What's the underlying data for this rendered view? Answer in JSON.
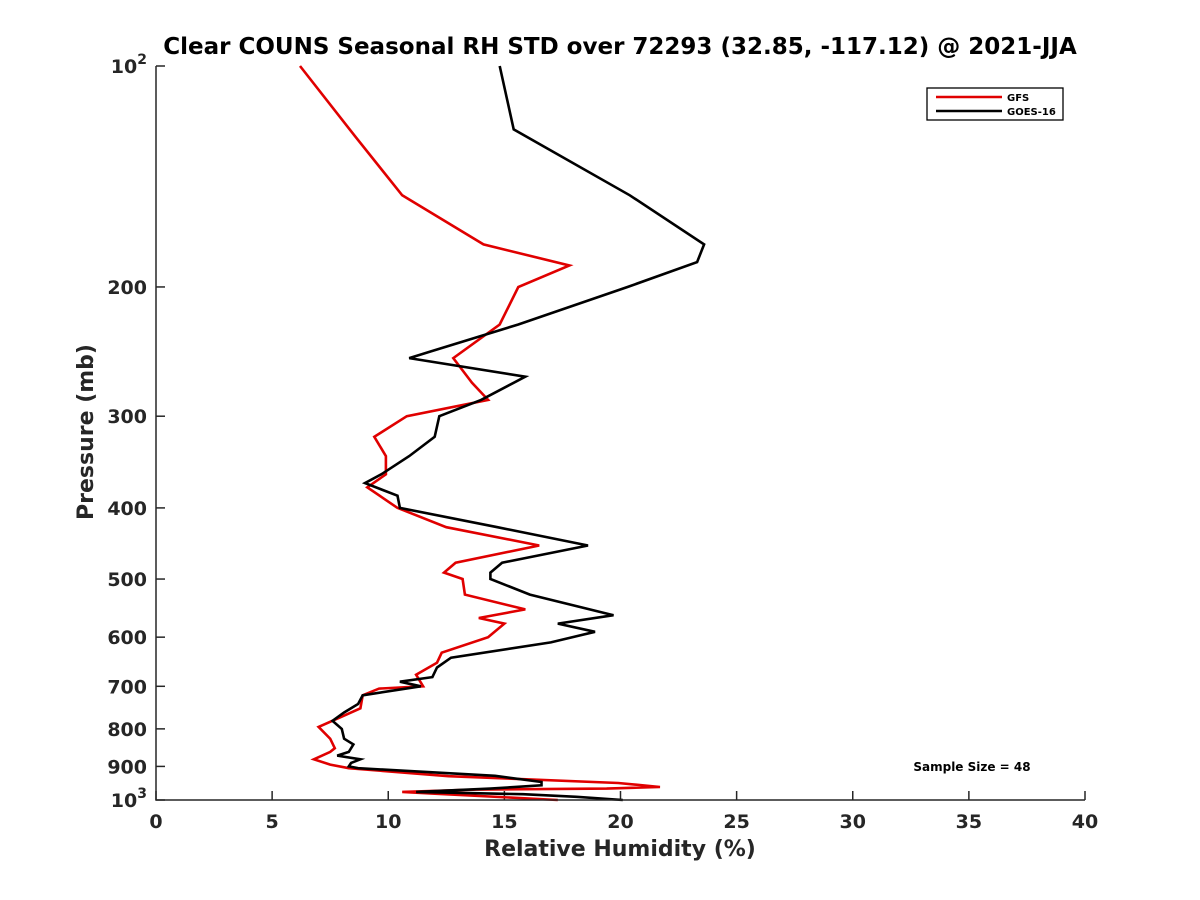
{
  "chart_data": {
    "type": "line",
    "title": "Clear COUNS Seasonal RH STD over 72293 (32.85, -117.12) @ 2021-JJA",
    "xlabel": "Relative Humidity (%)",
    "ylabel": "Pressure (mb)",
    "xlim": [
      0,
      40
    ],
    "ylim": [
      100,
      1000
    ],
    "yscale": "log",
    "y_reversed": true,
    "xticks": [
      0,
      5,
      10,
      15,
      20,
      25,
      30,
      35,
      40
    ],
    "xtick_labels": [
      "0",
      "5",
      "10",
      "15",
      "20",
      "25",
      "30",
      "35",
      "40"
    ],
    "yticks": [
      100,
      200,
      300,
      400,
      500,
      600,
      700,
      800,
      900,
      1000
    ],
    "ytick_labels": [
      {
        "base": "10",
        "exp": "2"
      },
      {
        "base": "200",
        "exp": ""
      },
      {
        "base": "300",
        "exp": ""
      },
      {
        "base": "400",
        "exp": ""
      },
      {
        "base": "500",
        "exp": ""
      },
      {
        "base": "600",
        "exp": ""
      },
      {
        "base": "700",
        "exp": ""
      },
      {
        "base": "800",
        "exp": ""
      },
      {
        "base": "900",
        "exp": ""
      },
      {
        "base": "10",
        "exp": "3"
      }
    ],
    "grid": false,
    "legend_position": "top-right",
    "annotation": "Sample Size = 48",
    "series": [
      {
        "name": "GFS",
        "color": "#e00000",
        "points": [
          [
            6.2,
            100
          ],
          [
            8.6,
            125
          ],
          [
            10.6,
            150
          ],
          [
            14.1,
            175
          ],
          [
            17.8,
            187
          ],
          [
            15.6,
            200
          ],
          [
            14.8,
            225
          ],
          [
            12.8,
            250
          ],
          [
            13.6,
            270
          ],
          [
            14.3,
            285
          ],
          [
            10.8,
            300
          ],
          [
            9.4,
            320
          ],
          [
            9.9,
            340
          ],
          [
            9.9,
            360
          ],
          [
            9.1,
            375
          ],
          [
            10.4,
            400
          ],
          [
            12.5,
            425
          ],
          [
            16.5,
            450
          ],
          [
            12.9,
            475
          ],
          [
            12.4,
            490
          ],
          [
            13.2,
            500
          ],
          [
            13.3,
            525
          ],
          [
            15.9,
            550
          ],
          [
            13.9,
            565
          ],
          [
            15.0,
            575
          ],
          [
            14.3,
            600
          ],
          [
            12.3,
            630
          ],
          [
            12.1,
            650
          ],
          [
            11.2,
            675
          ],
          [
            11.5,
            700
          ],
          [
            9.6,
            705
          ],
          [
            8.9,
            720
          ],
          [
            8.8,
            750
          ],
          [
            7.8,
            775
          ],
          [
            7.0,
            795
          ],
          [
            7.5,
            825
          ],
          [
            7.7,
            850
          ],
          [
            7.5,
            860
          ],
          [
            6.8,
            880
          ],
          [
            7.5,
            895
          ],
          [
            8.3,
            905
          ],
          [
            12.6,
            928
          ],
          [
            19.9,
            948
          ],
          [
            21.7,
            960
          ],
          [
            19.4,
            965
          ],
          [
            13.8,
            968
          ],
          [
            10.6,
            975
          ],
          [
            11.9,
            980
          ],
          [
            17.3,
            1000
          ]
        ]
      },
      {
        "name": "GOES-16",
        "color": "#000000",
        "points": [
          [
            14.8,
            100
          ],
          [
            15.4,
            122
          ],
          [
            20.4,
            150
          ],
          [
            23.6,
            175
          ],
          [
            23.3,
            185
          ],
          [
            20.3,
            200
          ],
          [
            15.6,
            225
          ],
          [
            11.8,
            245
          ],
          [
            10.9,
            250
          ],
          [
            15.9,
            265
          ],
          [
            14.0,
            285
          ],
          [
            12.2,
            300
          ],
          [
            12.0,
            320
          ],
          [
            10.9,
            340
          ],
          [
            9.7,
            360
          ],
          [
            9.0,
            370
          ],
          [
            10.4,
            385
          ],
          [
            10.5,
            400
          ],
          [
            14.7,
            425
          ],
          [
            18.6,
            450
          ],
          [
            14.9,
            475
          ],
          [
            14.4,
            490
          ],
          [
            14.4,
            500
          ],
          [
            16.1,
            525
          ],
          [
            19.7,
            560
          ],
          [
            17.3,
            575
          ],
          [
            18.9,
            590
          ],
          [
            17.0,
            610
          ],
          [
            12.7,
            640
          ],
          [
            12.1,
            660
          ],
          [
            11.9,
            680
          ],
          [
            10.5,
            690
          ],
          [
            11.4,
            700
          ],
          [
            8.9,
            720
          ],
          [
            8.7,
            740
          ],
          [
            8.1,
            760
          ],
          [
            7.6,
            780
          ],
          [
            8.0,
            800
          ],
          [
            8.1,
            825
          ],
          [
            8.5,
            840
          ],
          [
            8.3,
            860
          ],
          [
            7.8,
            870
          ],
          [
            8.8,
            880
          ],
          [
            8.4,
            890
          ],
          [
            8.3,
            900
          ],
          [
            8.7,
            905
          ],
          [
            14.6,
            927
          ],
          [
            16.6,
            945
          ],
          [
            16.6,
            955
          ],
          [
            14.4,
            965
          ],
          [
            11.2,
            975
          ],
          [
            15.8,
            982
          ],
          [
            18.1,
            990
          ],
          [
            20.1,
            1000
          ]
        ]
      }
    ]
  }
}
